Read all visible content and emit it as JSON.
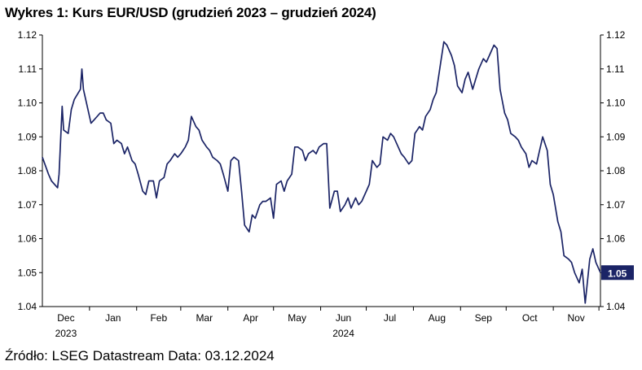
{
  "title": "Wykres 1: Kurs EUR/USD (grudzień 2023 – grudzień 2024)",
  "source": "Źródło: LSEG Datastream Data: 03.12.2024",
  "colors": {
    "line": "#1b2466",
    "badge": "#1b2466",
    "axis": "#000000"
  },
  "chart_data": {
    "type": "line",
    "title": "Wykres 1: Kurs EUR/USD (grudzień 2023 – grudzień 2024)",
    "xlabel": "",
    "ylabel": "",
    "ylim": [
      1.04,
      1.12
    ],
    "yticks": [
      "1.04",
      "1.05",
      "1.06",
      "1.07",
      "1.08",
      "1.09",
      "1.10",
      "1.11",
      "1.12"
    ],
    "y_axis_left": true,
    "y_axis_right": true,
    "grid": false,
    "x_tick_labels": [
      {
        "label": "Dec",
        "sub": "2023",
        "x": "2023-12"
      },
      {
        "label": "Jan",
        "sub": "",
        "x": "2024-01"
      },
      {
        "label": "Feb",
        "sub": "",
        "x": "2024-02"
      },
      {
        "label": "Mar",
        "sub": "",
        "x": "2024-03"
      },
      {
        "label": "Apr",
        "sub": "",
        "x": "2024-04"
      },
      {
        "label": "May",
        "sub": "",
        "x": "2024-05"
      },
      {
        "label": "Jun",
        "sub": "2024",
        "x": "2024-06"
      },
      {
        "label": "Jul",
        "sub": "",
        "x": "2024-07"
      },
      {
        "label": "Aug",
        "sub": "",
        "x": "2024-08"
      },
      {
        "label": "Sep",
        "sub": "",
        "x": "2024-09"
      },
      {
        "label": "Oct",
        "sub": "",
        "x": "2024-10"
      },
      {
        "label": "Nov",
        "sub": "",
        "x": "2024-11"
      }
    ],
    "last_value_label": "1.05",
    "series": [
      {
        "name": "",
        "x": [
          "2023-12-01",
          "2023-12-05",
          "2023-12-07",
          "2023-12-11",
          "2023-12-12",
          "2023-12-14",
          "2023-12-15",
          "2023-12-18",
          "2023-12-20",
          "2023-12-22",
          "2023-12-26",
          "2023-12-27",
          "2023-12-28",
          "2024-01-02",
          "2024-01-04",
          "2024-01-08",
          "2024-01-10",
          "2024-01-12",
          "2024-01-15",
          "2024-01-17",
          "2024-01-19",
          "2024-01-22",
          "2024-01-24",
          "2024-01-26",
          "2024-01-29",
          "2024-01-31",
          "2024-02-02",
          "2024-02-05",
          "2024-02-07",
          "2024-02-09",
          "2024-02-12",
          "2024-02-14",
          "2024-02-16",
          "2024-02-19",
          "2024-02-21",
          "2024-02-23",
          "2024-02-26",
          "2024-02-28",
          "2024-03-01",
          "2024-03-04",
          "2024-03-06",
          "2024-03-08",
          "2024-03-11",
          "2024-03-13",
          "2024-03-15",
          "2024-03-18",
          "2024-03-20",
          "2024-03-22",
          "2024-03-25",
          "2024-03-27",
          "2024-03-29",
          "2024-04-01",
          "2024-04-03",
          "2024-04-05",
          "2024-04-08",
          "2024-04-10",
          "2024-04-12",
          "2024-04-15",
          "2024-04-17",
          "2024-04-19",
          "2024-04-22",
          "2024-04-24",
          "2024-04-26",
          "2024-04-29",
          "2024-05-01",
          "2024-05-03",
          "2024-05-06",
          "2024-05-08",
          "2024-05-10",
          "2024-05-13",
          "2024-05-15",
          "2024-05-17",
          "2024-05-20",
          "2024-05-22",
          "2024-05-24",
          "2024-05-27",
          "2024-05-29",
          "2024-05-31",
          "2024-06-03",
          "2024-06-05",
          "2024-06-07",
          "2024-06-10",
          "2024-06-12",
          "2024-06-14",
          "2024-06-17",
          "2024-06-19",
          "2024-06-21",
          "2024-06-24",
          "2024-06-26",
          "2024-06-28",
          "2024-07-01",
          "2024-07-03",
          "2024-07-05",
          "2024-07-08",
          "2024-07-10",
          "2024-07-12",
          "2024-07-15",
          "2024-07-17",
          "2024-07-19",
          "2024-07-22",
          "2024-07-24",
          "2024-07-26",
          "2024-07-29",
          "2024-07-31",
          "2024-08-02",
          "2024-08-05",
          "2024-08-07",
          "2024-08-09",
          "2024-08-12",
          "2024-08-14",
          "2024-08-16",
          "2024-08-19",
          "2024-08-21",
          "2024-08-23",
          "2024-08-26",
          "2024-08-28",
          "2024-08-30",
          "2024-09-02",
          "2024-09-04",
          "2024-09-06",
          "2024-09-09",
          "2024-09-11",
          "2024-09-13",
          "2024-09-16",
          "2024-09-18",
          "2024-09-20",
          "2024-09-23",
          "2024-09-25",
          "2024-09-27",
          "2024-09-30",
          "2024-10-02",
          "2024-10-04",
          "2024-10-07",
          "2024-10-09",
          "2024-10-11",
          "2024-10-14",
          "2024-10-16",
          "2024-10-18",
          "2024-10-21",
          "2024-10-23",
          "2024-10-25",
          "2024-10-28",
          "2024-10-30",
          "2024-11-01",
          "2024-11-04",
          "2024-11-06",
          "2024-11-08",
          "2024-11-11",
          "2024-11-13",
          "2024-11-15",
          "2024-11-18",
          "2024-11-20",
          "2024-11-22",
          "2024-11-25",
          "2024-11-27",
          "2024-11-29",
          "2024-12-02"
        ],
        "values": [
          1.084,
          1.079,
          1.077,
          1.075,
          1.079,
          1.099,
          1.092,
          1.091,
          1.098,
          1.101,
          1.104,
          1.11,
          1.104,
          1.094,
          1.095,
          1.097,
          1.097,
          1.095,
          1.094,
          1.088,
          1.089,
          1.088,
          1.085,
          1.087,
          1.083,
          1.082,
          1.079,
          1.074,
          1.073,
          1.077,
          1.077,
          1.072,
          1.077,
          1.078,
          1.082,
          1.083,
          1.085,
          1.084,
          1.085,
          1.087,
          1.089,
          1.096,
          1.093,
          1.092,
          1.089,
          1.087,
          1.086,
          1.084,
          1.083,
          1.082,
          1.079,
          1.074,
          1.083,
          1.084,
          1.083,
          1.074,
          1.064,
          1.062,
          1.067,
          1.066,
          1.07,
          1.071,
          1.071,
          1.072,
          1.066,
          1.076,
          1.077,
          1.074,
          1.077,
          1.079,
          1.087,
          1.087,
          1.086,
          1.083,
          1.085,
          1.086,
          1.085,
          1.087,
          1.088,
          1.088,
          1.069,
          1.074,
          1.074,
          1.068,
          1.07,
          1.072,
          1.069,
          1.072,
          1.07,
          1.071,
          1.074,
          1.076,
          1.083,
          1.081,
          1.082,
          1.09,
          1.089,
          1.091,
          1.09,
          1.087,
          1.085,
          1.084,
          1.082,
          1.083,
          1.091,
          1.093,
          1.092,
          1.096,
          1.098,
          1.101,
          1.103,
          1.112,
          1.118,
          1.117,
          1.114,
          1.111,
          1.105,
          1.103,
          1.107,
          1.109,
          1.104,
          1.107,
          1.11,
          1.113,
          1.112,
          1.114,
          1.117,
          1.116,
          1.104,
          1.097,
          1.095,
          1.091,
          1.09,
          1.089,
          1.087,
          1.085,
          1.081,
          1.083,
          1.082,
          1.086,
          1.09,
          1.086,
          1.076,
          1.073,
          1.065,
          1.062,
          1.055,
          1.054,
          1.053,
          1.05,
          1.047,
          1.051,
          1.041,
          1.054,
          1.057,
          1.053,
          1.05
        ]
      }
    ]
  }
}
